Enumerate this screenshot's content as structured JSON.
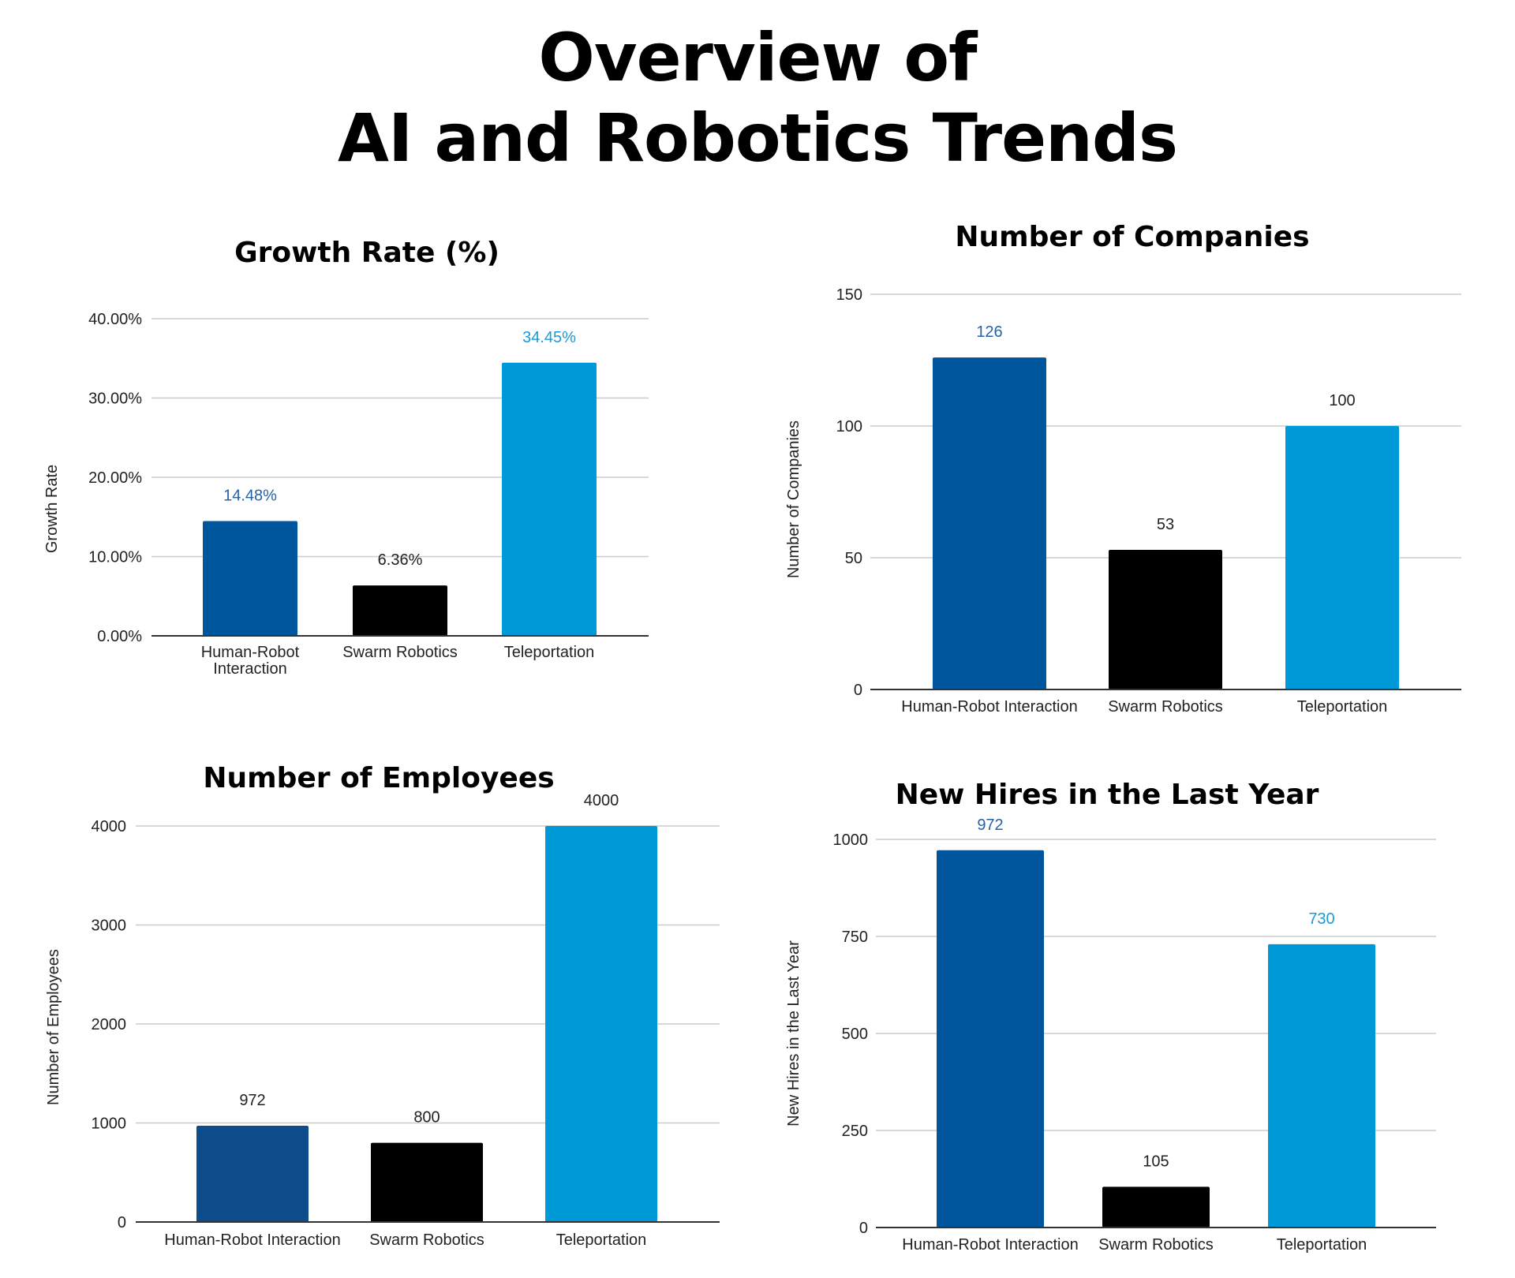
{
  "page": {
    "title_line1": "Overview of",
    "title_line2": "AI and Robotics Trends"
  },
  "colors": {
    "dark_blue": "#00569C",
    "black": "#000000",
    "light_blue": "#0099D8",
    "grid": "#cccccc",
    "baseline": "#333333"
  },
  "chart_data": [
    {
      "id": "growth",
      "type": "bar",
      "title": "Growth Rate (%)",
      "xlabel": "",
      "ylabel": "Growth Rate",
      "categories": [
        "Human-Robot Interaction",
        "Swarm Robotics",
        "Teleportation"
      ],
      "category_lines": [
        [
          "Human-Robot",
          "Interaction"
        ],
        [
          "Swarm Robotics"
        ],
        [
          "Teleportation"
        ]
      ],
      "values": [
        14.48,
        6.36,
        34.45
      ],
      "value_labels": [
        "14.48%",
        "6.36%",
        "34.45%"
      ],
      "label_colors": [
        "#2563a8",
        "#222222",
        "#1a9ad6"
      ],
      "bar_colors": [
        "#00569C",
        "#000000",
        "#0099D8"
      ],
      "ylim": [
        0,
        40
      ],
      "ticks": [
        0,
        10,
        20,
        30,
        40
      ],
      "tick_labels": [
        "0.00%",
        "10.00%",
        "20.00%",
        "30.00%",
        "40.00%"
      ],
      "grid": true
    },
    {
      "id": "companies",
      "type": "bar",
      "title": "Number of Companies",
      "xlabel": "",
      "ylabel": "Number of Companies",
      "categories": [
        "Human-Robot Interaction",
        "Swarm Robotics",
        "Teleportation"
      ],
      "category_lines": [
        [
          "Human-Robot Interaction"
        ],
        [
          "Swarm Robotics"
        ],
        [
          "Teleportation"
        ]
      ],
      "values": [
        126,
        53,
        100
      ],
      "value_labels": [
        "126",
        "53",
        "100"
      ],
      "label_colors": [
        "#2563a8",
        "#222222",
        "#222222"
      ],
      "bar_colors": [
        "#00569C",
        "#000000",
        "#0099D8"
      ],
      "ylim": [
        0,
        150
      ],
      "ticks": [
        0,
        50,
        100,
        150
      ],
      "tick_labels": [
        "0",
        "50",
        "100",
        "150"
      ],
      "grid": true
    },
    {
      "id": "employees",
      "type": "bar",
      "title": "Number of Employees",
      "xlabel": "",
      "ylabel": "Number of Employees",
      "categories": [
        "Human-Robot Interaction",
        "Swarm Robotics",
        "Teleportation"
      ],
      "category_lines": [
        [
          "Human-Robot Interaction"
        ],
        [
          "Swarm Robotics"
        ],
        [
          "Teleportation"
        ]
      ],
      "values": [
        972,
        800,
        4000
      ],
      "value_labels": [
        "972",
        "800",
        "4000"
      ],
      "label_colors": [
        "#222222",
        "#222222",
        "#222222"
      ],
      "bar_colors": [
        "#0E4C8C",
        "#000000",
        "#0099D8"
      ],
      "ylim": [
        0,
        4000
      ],
      "ticks": [
        0,
        1000,
        2000,
        3000,
        4000
      ],
      "tick_labels": [
        "0",
        "1000",
        "2000",
        "3000",
        "4000"
      ],
      "grid": true
    },
    {
      "id": "hires",
      "type": "bar",
      "title": "New Hires in the Last Year",
      "xlabel": "",
      "ylabel": "New Hires in the Last Year",
      "categories": [
        "Human-Robot Interaction",
        "Swarm Robotics",
        "Teleportation"
      ],
      "category_lines": [
        [
          "Human-Robot Interaction"
        ],
        [
          "Swarm Robotics"
        ],
        [
          "Teleportation"
        ]
      ],
      "values": [
        972,
        105,
        730
      ],
      "value_labels": [
        "972",
        "105",
        "730"
      ],
      "label_colors": [
        "#2563a8",
        "#222222",
        "#1a9ad6"
      ],
      "bar_colors": [
        "#00569C",
        "#000000",
        "#0099D8"
      ],
      "ylim": [
        0,
        1000
      ],
      "ticks": [
        0,
        250,
        500,
        750,
        1000
      ],
      "tick_labels": [
        "0",
        "250",
        "500",
        "750",
        "1000"
      ],
      "grid": true
    }
  ]
}
